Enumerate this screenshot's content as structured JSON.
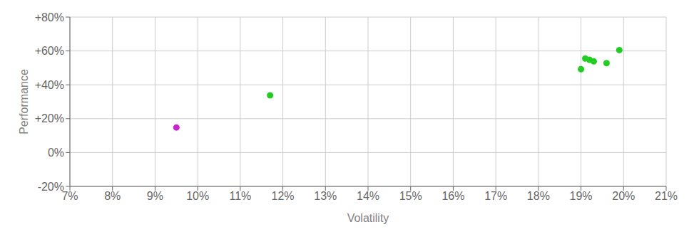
{
  "chart_data": {
    "type": "scatter",
    "xlabel": "Volatility",
    "ylabel": "Performance",
    "xlim": [
      0.07,
      0.21
    ],
    "ylim": [
      -0.2,
      0.8
    ],
    "xticks": [
      {
        "value": 0.07,
        "label": "7%"
      },
      {
        "value": 0.08,
        "label": "8%"
      },
      {
        "value": 0.09,
        "label": "9%"
      },
      {
        "value": 0.1,
        "label": "10%"
      },
      {
        "value": 0.11,
        "label": "11%"
      },
      {
        "value": 0.12,
        "label": "12%"
      },
      {
        "value": 0.13,
        "label": "13%"
      },
      {
        "value": 0.14,
        "label": "14%"
      },
      {
        "value": 0.15,
        "label": "15%"
      },
      {
        "value": 0.16,
        "label": "16%"
      },
      {
        "value": 0.17,
        "label": "17%"
      },
      {
        "value": 0.18,
        "label": "18%"
      },
      {
        "value": 0.19,
        "label": "19%"
      },
      {
        "value": 0.2,
        "label": "20%"
      },
      {
        "value": 0.21,
        "label": "21%"
      }
    ],
    "yticks": [
      {
        "value": -0.2,
        "label": "-20%"
      },
      {
        "value": 0.0,
        "label": "0%"
      },
      {
        "value": 0.2,
        "label": "+20%"
      },
      {
        "value": 0.4,
        "label": "+40%"
      },
      {
        "value": 0.6,
        "label": "+60%"
      },
      {
        "value": 0.8,
        "label": "+80%"
      }
    ],
    "grid": true,
    "series": [
      {
        "color": "#22cc22",
        "x": [
          0.199,
          0.192,
          0.191,
          0.193,
          0.196,
          0.19,
          0.117
        ],
        "values": [
          0.605,
          0.548,
          0.555,
          0.538,
          0.528,
          0.492,
          0.338
        ]
      },
      {
        "color": "#cc22cc",
        "x": [
          0.095
        ],
        "values": [
          0.148
        ]
      }
    ]
  }
}
